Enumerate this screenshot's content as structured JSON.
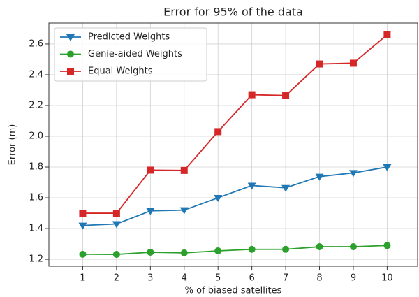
{
  "chart_data": {
    "type": "line",
    "title": "Error for 95% of the data",
    "x_label": "% of biased satellites",
    "y_label": "Error (m)",
    "x": [
      1,
      2,
      3,
      4,
      5,
      6,
      7,
      8,
      9,
      10
    ],
    "series": [
      {
        "name": "Predicted Weights",
        "color": "#1f77b4",
        "marker": "triangle-down",
        "values": [
          1.42,
          1.43,
          1.515,
          1.52,
          1.6,
          1.68,
          1.665,
          1.738,
          1.762,
          1.8
        ]
      },
      {
        "name": "Genie-aided Weights",
        "color": "#2ca02c",
        "marker": "circle",
        "values": [
          1.233,
          1.232,
          1.246,
          1.242,
          1.255,
          1.265,
          1.265,
          1.282,
          1.282,
          1.29
        ]
      },
      {
        "name": "Equal Weights",
        "color": "#d62728",
        "marker": "square",
        "values": [
          1.5,
          1.5,
          1.78,
          1.778,
          2.03,
          2.27,
          2.265,
          2.47,
          2.475,
          2.66
        ]
      }
    ],
    "xlim": [
      0,
      10.9
    ],
    "ylim": [
      1.155,
      2.736
    ],
    "xticks": [
      1,
      2,
      3,
      4,
      5,
      6,
      7,
      8,
      9,
      10
    ],
    "yticks": [
      {
        "value": 1.2,
        "label": "1.2"
      },
      {
        "value": 1.4,
        "label": "1.4"
      },
      {
        "value": 1.6,
        "label": "1.6"
      },
      {
        "value": 1.8,
        "label": "1.8"
      },
      {
        "value": 2.0,
        "label": "2.0"
      },
      {
        "value": 2.2,
        "label": "2.2"
      },
      {
        "value": 2.4,
        "label": "2.4"
      },
      {
        "value": 2.6,
        "label": "2.6"
      }
    ],
    "grid": true,
    "legend": "upper-left"
  }
}
